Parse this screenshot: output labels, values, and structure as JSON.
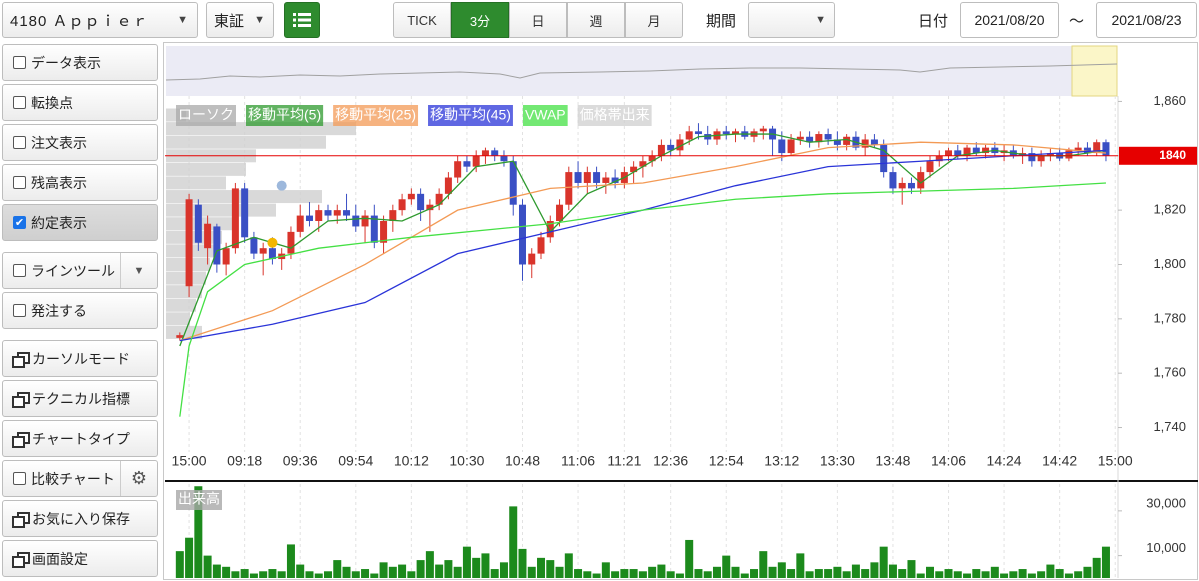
{
  "toolbar": {
    "symbol": "4180 Ａｐｐｉｅｒ",
    "market": "東証",
    "intervals": [
      "TICK",
      "3分",
      "日",
      "週",
      "月"
    ],
    "active_interval": 1,
    "period_label": "期間",
    "date_label": "日付",
    "date_from": "2021/08/20",
    "separator": "～",
    "date_to": "2021/08/23"
  },
  "sidebar": {
    "items": [
      {
        "label": "データ表示",
        "checked": false
      },
      {
        "label": "転換点",
        "checked": false
      },
      {
        "label": "注文表示",
        "checked": false
      },
      {
        "label": "残高表示",
        "checked": false
      },
      {
        "label": "約定表示",
        "checked": true
      },
      {
        "label": "ラインツール",
        "checked": false
      },
      {
        "label": "発注する",
        "checked": false
      },
      {
        "label": "カーソルモード"
      },
      {
        "label": "テクニカル指標"
      },
      {
        "label": "チャートタイプ"
      },
      {
        "label": "比較チャート",
        "checked": false
      },
      {
        "label": "お気に入り保存"
      },
      {
        "label": "画面設定"
      }
    ]
  },
  "chart_data": {
    "type": "candlestick",
    "candles": {
      "name": "ローソク",
      "color": "#a8a8a8",
      "up_color": "#d9342b",
      "down_color": "#3a4fc4",
      "ohlc": [
        [
          1773,
          1775,
          1772,
          1774
        ],
        [
          1792,
          1826,
          1788,
          1824
        ],
        [
          1822,
          1824,
          1805,
          1808
        ],
        [
          1806,
          1818,
          1800,
          1815
        ],
        [
          1814,
          1815,
          1797,
          1800
        ],
        [
          1800,
          1808,
          1796,
          1806
        ],
        [
          1806,
          1830,
          1804,
          1828
        ],
        [
          1828,
          1830,
          1808,
          1810
        ],
        [
          1810,
          1812,
          1802,
          1804
        ],
        [
          1804,
          1808,
          1796,
          1806
        ],
        [
          1806,
          1810,
          1800,
          1802
        ],
        [
          1802,
          1806,
          1798,
          1804
        ],
        [
          1804,
          1814,
          1802,
          1812
        ],
        [
          1812,
          1822,
          1810,
          1818
        ],
        [
          1818,
          1823,
          1814,
          1816
        ],
        [
          1816,
          1822,
          1812,
          1820
        ],
        [
          1820,
          1822,
          1816,
          1818
        ],
        [
          1818,
          1822,
          1815,
          1820
        ],
        [
          1820,
          1826,
          1816,
          1818
        ],
        [
          1818,
          1822,
          1812,
          1814
        ],
        [
          1814,
          1820,
          1808,
          1818
        ],
        [
          1818,
          1822,
          1806,
          1808
        ],
        [
          1808,
          1818,
          1804,
          1816
        ],
        [
          1816,
          1822,
          1812,
          1820
        ],
        [
          1820,
          1826,
          1818,
          1824
        ],
        [
          1824,
          1828,
          1822,
          1826
        ],
        [
          1826,
          1828,
          1816,
          1820
        ],
        [
          1820,
          1824,
          1812,
          1822
        ],
        [
          1822,
          1828,
          1820,
          1826
        ],
        [
          1826,
          1834,
          1824,
          1832
        ],
        [
          1832,
          1840,
          1830,
          1838
        ],
        [
          1838,
          1840,
          1834,
          1836
        ],
        [
          1836,
          1842,
          1834,
          1840
        ],
        [
          1840,
          1843,
          1837,
          1842
        ],
        [
          1842,
          1843,
          1838,
          1840
        ],
        [
          1840,
          1842,
          1836,
          1838
        ],
        [
          1838,
          1840,
          1818,
          1822
        ],
        [
          1822,
          1824,
          1794,
          1800
        ],
        [
          1800,
          1806,
          1795,
          1804
        ],
        [
          1804,
          1812,
          1802,
          1810
        ],
        [
          1810,
          1818,
          1808,
          1816
        ],
        [
          1816,
          1824,
          1814,
          1822
        ],
        [
          1822,
          1836,
          1820,
          1834
        ],
        [
          1834,
          1838,
          1828,
          1830
        ],
        [
          1830,
          1836,
          1826,
          1834
        ],
        [
          1834,
          1836,
          1828,
          1830
        ],
        [
          1830,
          1834,
          1826,
          1832
        ],
        [
          1832,
          1835,
          1828,
          1830
        ],
        [
          1830,
          1836,
          1828,
          1834
        ],
        [
          1834,
          1838,
          1830,
          1836
        ],
        [
          1836,
          1840,
          1832,
          1838
        ],
        [
          1838,
          1842,
          1836,
          1840
        ],
        [
          1840,
          1846,
          1838,
          1844
        ],
        [
          1844,
          1846,
          1840,
          1842
        ],
        [
          1842,
          1848,
          1840,
          1846
        ],
        [
          1846,
          1851,
          1844,
          1849
        ],
        [
          1849,
          1852,
          1846,
          1848
        ],
        [
          1848,
          1851,
          1844,
          1846
        ],
        [
          1846,
          1850,
          1844,
          1849
        ],
        [
          1849,
          1851,
          1846,
          1848
        ],
        [
          1848,
          1850,
          1845,
          1849
        ],
        [
          1849,
          1851,
          1846,
          1847
        ],
        [
          1847,
          1850,
          1845,
          1849
        ],
        [
          1849,
          1851,
          1846,
          1850
        ],
        [
          1850,
          1851,
          1840,
          1846
        ],
        [
          1846,
          1849,
          1838,
          1841
        ],
        [
          1841,
          1848,
          1840,
          1846
        ],
        [
          1846,
          1849,
          1844,
          1847
        ],
        [
          1847,
          1849,
          1843,
          1845
        ],
        [
          1845,
          1849,
          1843,
          1848
        ],
        [
          1848,
          1850,
          1844,
          1846
        ],
        [
          1846,
          1849,
          1842,
          1844
        ],
        [
          1844,
          1848,
          1842,
          1847
        ],
        [
          1847,
          1849,
          1842,
          1843
        ],
        [
          1843,
          1848,
          1840,
          1846
        ],
        [
          1846,
          1848,
          1843,
          1844
        ],
        [
          1844,
          1846,
          1832,
          1834
        ],
        [
          1834,
          1836,
          1826,
          1828
        ],
        [
          1828,
          1832,
          1822,
          1830
        ],
        [
          1830,
          1832,
          1826,
          1828
        ],
        [
          1828,
          1836,
          1826,
          1834
        ],
        [
          1834,
          1840,
          1832,
          1838
        ],
        [
          1838,
          1842,
          1836,
          1840
        ],
        [
          1840,
          1843,
          1838,
          1842
        ],
        [
          1842,
          1844,
          1839,
          1840
        ],
        [
          1840,
          1844,
          1838,
          1843
        ],
        [
          1843,
          1845,
          1840,
          1841
        ],
        [
          1841,
          1844,
          1839,
          1843
        ],
        [
          1843,
          1845,
          1840,
          1841
        ],
        [
          1841,
          1844,
          1838,
          1842
        ],
        [
          1842,
          1844,
          1839,
          1840
        ],
        [
          1840,
          1843,
          1837,
          1841
        ],
        [
          1841,
          1843,
          1836,
          1838
        ],
        [
          1838,
          1842,
          1836,
          1840
        ],
        [
          1840,
          1843,
          1838,
          1841
        ],
        [
          1841,
          1843,
          1838,
          1839
        ],
        [
          1839,
          1843,
          1838,
          1842
        ],
        [
          1842,
          1845,
          1840,
          1843
        ],
        [
          1843,
          1845,
          1840,
          1841
        ],
        [
          1841,
          1846,
          1840,
          1845
        ],
        [
          1845,
          1846,
          1838,
          1840
        ]
      ]
    },
    "lines": [
      {
        "name": "移動平均(5)",
        "color": "#2e9a2e",
        "x": [
          0,
          4,
          8,
          12,
          16,
          20,
          24,
          28,
          32,
          36,
          40,
          44,
          48,
          52,
          56,
          60,
          64,
          68,
          72,
          76,
          80,
          84,
          88,
          92,
          96,
          100
        ],
        "values": [
          1770,
          1805,
          1810,
          1806,
          1816,
          1817,
          1816,
          1822,
          1836,
          1838,
          1812,
          1826,
          1832,
          1840,
          1847,
          1848,
          1848,
          1845,
          1846,
          1842,
          1830,
          1840,
          1842,
          1840,
          1840,
          1842
        ]
      },
      {
        "name": "移動平均(25)",
        "color": "#f39a55",
        "x": [
          0,
          10,
          20,
          30,
          40,
          50,
          60,
          70,
          80,
          90,
          100
        ],
        "values": [
          1772,
          1783,
          1800,
          1820,
          1828,
          1830,
          1836,
          1843,
          1845,
          1844,
          1841
        ]
      },
      {
        "name": "移動平均(45)",
        "color": "#2a34d8",
        "x": [
          0,
          10,
          20,
          30,
          40,
          50,
          60,
          70,
          80,
          90,
          100
        ],
        "values": [
          1772,
          1778,
          1786,
          1804,
          1812,
          1820,
          1829,
          1836,
          1838,
          1840,
          1842
        ]
      },
      {
        "name": "VWAP",
        "color": "#44e044",
        "x": [
          0,
          1,
          3,
          7,
          15,
          25,
          40,
          50,
          60,
          70,
          80,
          90,
          100
        ],
        "values": [
          1744,
          1770,
          1790,
          1800,
          1806,
          1810,
          1815,
          1820,
          1824,
          1826,
          1827,
          1828,
          1830
        ]
      }
    ],
    "volume_profile": {
      "name": "価格帯出来",
      "color": "#cfcfcf",
      "prices": [
        1855,
        1850,
        1845,
        1840,
        1835,
        1830,
        1825,
        1820,
        1815,
        1810,
        1805,
        1800,
        1795,
        1790,
        1785,
        1780,
        1775
      ],
      "values": [
        10,
        95,
        80,
        45,
        40,
        30,
        78,
        55,
        35,
        28,
        25,
        22,
        20,
        18,
        15,
        12,
        18
      ],
      "xlim": [
        0,
        100
      ]
    },
    "markers": [
      {
        "x": 11,
        "value": 1829,
        "color": "#9db8dc"
      },
      {
        "x": 10,
        "value": 1808,
        "color": "#f2b600"
      }
    ],
    "current_price": 1840,
    "current_price_color": "#e60000",
    "xlim": [
      -1.6,
      101.3
    ],
    "xticks": [
      {
        "value": 1,
        "label": "15:00"
      },
      {
        "value": 7,
        "label": "09:18"
      },
      {
        "value": 13,
        "label": "09:36"
      },
      {
        "value": 19,
        "label": "09:54"
      },
      {
        "value": 25,
        "label": "10:12"
      },
      {
        "value": 31,
        "label": "10:30"
      },
      {
        "value": 37,
        "label": "10:48"
      },
      {
        "value": 43,
        "label": "11:06"
      },
      {
        "value": 48,
        "label": "11:21"
      },
      {
        "value": 53,
        "label": "12:36"
      },
      {
        "value": 59,
        "label": "12:54"
      },
      {
        "value": 65,
        "label": "13:12"
      },
      {
        "value": 71,
        "label": "13:30"
      },
      {
        "value": 77,
        "label": "13:48"
      },
      {
        "value": 83,
        "label": "14:06"
      },
      {
        "value": 89,
        "label": "14:24"
      },
      {
        "value": 95,
        "label": "14:42"
      },
      {
        "value": 101,
        "label": "15:00"
      }
    ],
    "ylim": [
      1731,
      1862
    ],
    "yticks": [
      {
        "value": 1740,
        "label": "1,740"
      },
      {
        "value": 1760,
        "label": "1,760"
      },
      {
        "value": 1780,
        "label": "1,780"
      },
      {
        "value": 1800,
        "label": "1,800"
      },
      {
        "value": 1820,
        "label": "1,820"
      },
      {
        "value": 1840,
        "label": "1,840"
      },
      {
        "value": 1860,
        "label": "1,860"
      }
    ],
    "grid": true,
    "volume": {
      "title": "出来高",
      "color": "#1c8a1c",
      "ylim": [
        0,
        42000
      ],
      "yticks": [
        {
          "value": 10000,
          "label": "10,000"
        },
        {
          "value": 30000,
          "label": "30,000"
        }
      ],
      "values": [
        12000,
        18000,
        41000,
        10000,
        6000,
        5000,
        3000,
        4000,
        2000,
        3000,
        4000,
        3000,
        15000,
        6000,
        3000,
        2000,
        3000,
        8000,
        5000,
        3000,
        4000,
        2000,
        7000,
        5000,
        6000,
        3000,
        8000,
        12000,
        6000,
        8000,
        5000,
        14000,
        9000,
        11000,
        4000,
        7000,
        32000,
        13000,
        5000,
        9000,
        8000,
        5000,
        11000,
        4000,
        3000,
        2000,
        7000,
        3000,
        4000,
        4000,
        3000,
        5000,
        6000,
        3000,
        2000,
        17000,
        4000,
        3000,
        5000,
        10000,
        5000,
        2000,
        4000,
        12000,
        5000,
        7000,
        4000,
        11000,
        3000,
        4000,
        4000,
        5000,
        3000,
        6000,
        4000,
        7000,
        14000,
        6000,
        4000,
        8000,
        2000,
        5000,
        3000,
        4000,
        3000,
        2000,
        4000,
        3000,
        5000,
        2000,
        3000,
        4000,
        2000,
        3000,
        6000,
        4000,
        2000,
        3000,
        5000,
        9000,
        14000
      ]
    }
  }
}
